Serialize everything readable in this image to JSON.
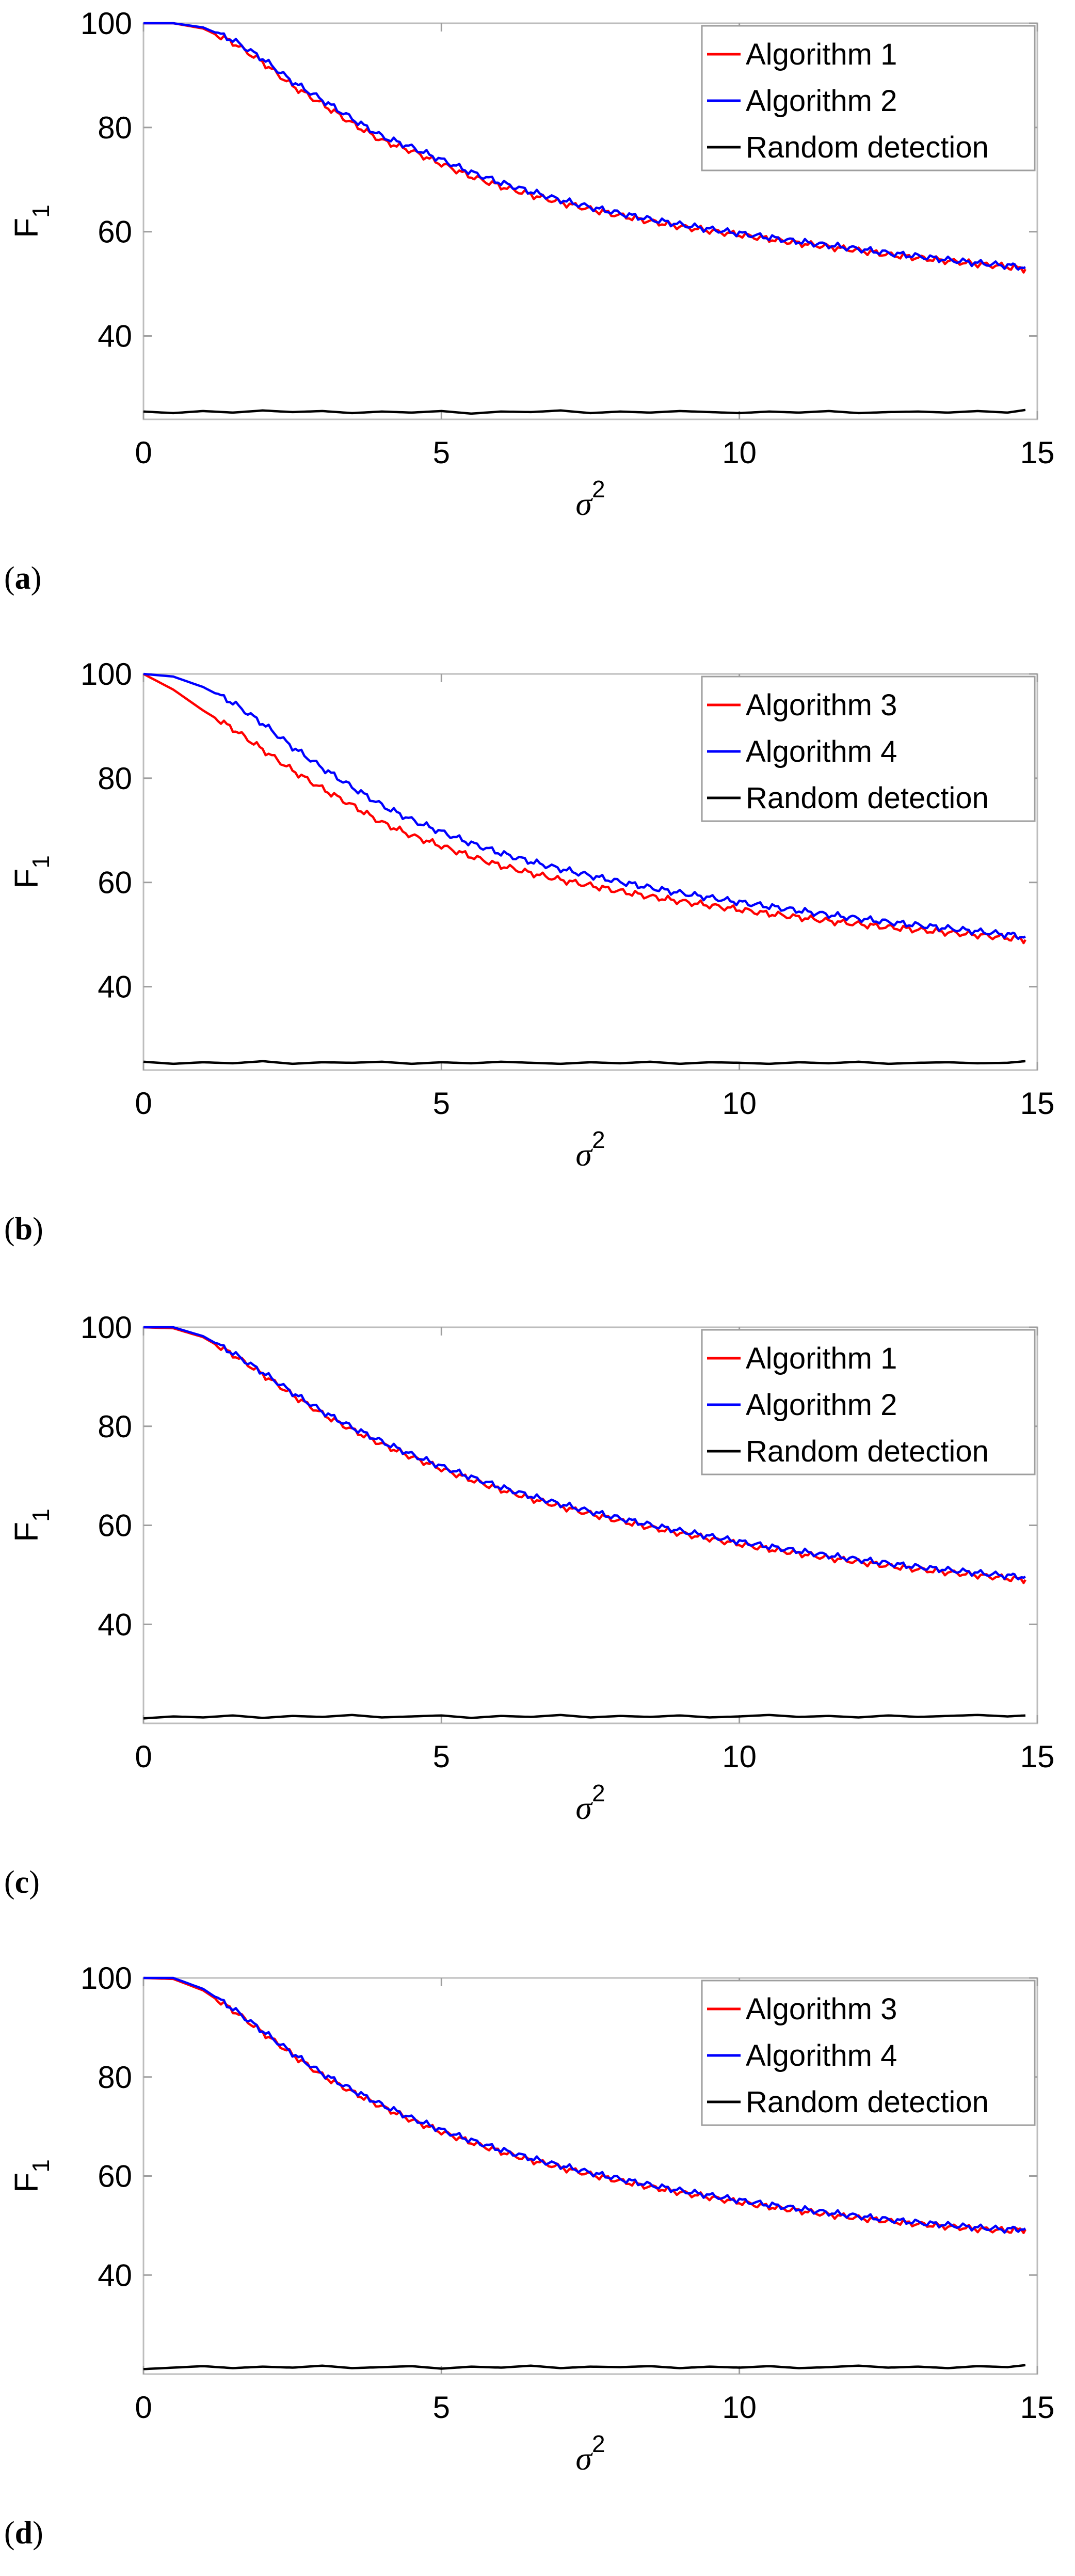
{
  "chart_data": [
    {
      "type": "line",
      "panel_label": "a",
      "xlabel": "σ",
      "xlabel_superscript": "2",
      "ylabel": "F",
      "ylabel_subscript": "1",
      "xlim": [
        0,
        15
      ],
      "ylim": [
        24,
        100
      ],
      "xticks": [
        0,
        5,
        10,
        15
      ],
      "yticks": [
        40,
        60,
        80,
        100
      ],
      "grid": false,
      "legend_position": "top-right",
      "x": [
        0,
        0.5,
        1,
        1.5,
        2,
        2.5,
        3,
        3.5,
        4,
        4.5,
        5,
        5.5,
        6,
        6.5,
        7,
        7.5,
        8,
        8.5,
        9,
        9.5,
        10,
        10.5,
        11,
        11.5,
        12,
        12.5,
        13,
        13.5,
        14,
        14.5,
        14.8
      ],
      "series": [
        {
          "name": "Algorithm 1",
          "color": "#ff0000",
          "values": [
            100,
            100,
            99,
            96.3,
            92.5,
            88,
            84.5,
            80.8,
            77.5,
            75.5,
            73,
            70.6,
            68.7,
            67.1,
            65.6,
            64.3,
            63.1,
            62,
            61,
            60.2,
            59.4,
            58.6,
            57.8,
            57.1,
            56.4,
            55.6,
            55,
            54.4,
            53.8,
            53.3,
            52.8
          ]
        },
        {
          "name": "Algorithm 2",
          "color": "#0000ff",
          "values": [
            100,
            100,
            99.2,
            96.8,
            93.2,
            88.8,
            85.3,
            81.7,
            78.3,
            76.2,
            73.8,
            71.4,
            69.4,
            67.7,
            66.1,
            64.7,
            63.5,
            62.4,
            61.4,
            60.5,
            59.7,
            58.9,
            58.1,
            57.4,
            56.7,
            55.9,
            55.3,
            54.6,
            54,
            53.5,
            53.2
          ]
        },
        {
          "name": "Random detection",
          "color": "#000000",
          "values": [
            25.5,
            25.2,
            25.6,
            25.3,
            25.7,
            25.4,
            25.6,
            25.2,
            25.5,
            25.3,
            25.6,
            25.1,
            25.5,
            25.4,
            25.7,
            25.2,
            25.5,
            25.3,
            25.6,
            25.4,
            25.2,
            25.5,
            25.3,
            25.6,
            25.2,
            25.4,
            25.5,
            25.3,
            25.6,
            25.3,
            25.8
          ]
        }
      ]
    },
    {
      "type": "line",
      "panel_label": "b",
      "xlabel": "σ",
      "xlabel_superscript": "2",
      "ylabel": "F",
      "ylabel_subscript": "1",
      "xlim": [
        0,
        15
      ],
      "ylim": [
        24,
        100
      ],
      "xticks": [
        0,
        5,
        10,
        15
      ],
      "yticks": [
        40,
        60,
        80,
        100
      ],
      "grid": false,
      "legend_position": "top-right",
      "x": [
        0,
        0.5,
        1,
        1.5,
        2,
        2.5,
        3,
        3.5,
        4,
        4.5,
        5,
        5.5,
        6,
        6.5,
        7,
        7.5,
        8,
        8.5,
        9,
        9.5,
        10,
        10.5,
        11,
        11.5,
        12,
        12.5,
        13,
        13.5,
        14,
        14.5,
        14.8
      ],
      "series": [
        {
          "name": "Algorithm 3",
          "color": "#ff0000",
          "values": [
            100,
            97,
            93,
            89.5,
            85.5,
            81.5,
            78,
            74.8,
            71.5,
            69,
            67,
            65,
            63.2,
            61.8,
            60.5,
            59.4,
            58.3,
            57.3,
            56.4,
            55.6,
            54.8,
            54,
            53.3,
            52.6,
            52,
            51.4,
            50.9,
            50.4,
            49.9,
            49.4,
            49
          ]
        },
        {
          "name": "Algorithm 4",
          "color": "#0000ff",
          "values": [
            100,
            99.5,
            97.5,
            94.5,
            90.5,
            86,
            82,
            78.3,
            74.8,
            72,
            69.7,
            67.5,
            65.6,
            64,
            62.6,
            61.3,
            60.1,
            59,
            58,
            57.1,
            56.2,
            55.4,
            54.6,
            53.8,
            53.1,
            52.4,
            51.8,
            51.2,
            50.6,
            50,
            49.6
          ]
        },
        {
          "name": "Random detection",
          "color": "#000000",
          "values": [
            25.6,
            25.2,
            25.5,
            25.3,
            25.7,
            25.2,
            25.5,
            25.4,
            25.6,
            25.2,
            25.5,
            25.3,
            25.6,
            25.4,
            25.2,
            25.5,
            25.3,
            25.6,
            25.2,
            25.5,
            25.4,
            25.2,
            25.5,
            25.3,
            25.6,
            25.2,
            25.4,
            25.5,
            25.3,
            25.4,
            25.7
          ]
        }
      ]
    },
    {
      "type": "line",
      "panel_label": "c",
      "xlabel": "σ",
      "xlabel_superscript": "2",
      "ylabel": "F",
      "ylabel_subscript": "1",
      "xlim": [
        0,
        15
      ],
      "ylim": [
        20,
        100
      ],
      "xticks": [
        0,
        5,
        10,
        15
      ],
      "yticks": [
        40,
        60,
        80,
        100
      ],
      "grid": false,
      "legend_position": "top-right",
      "x": [
        0,
        0.5,
        1,
        1.5,
        2,
        2.5,
        3,
        3.5,
        4,
        4.5,
        5,
        5.5,
        6,
        6.5,
        7,
        7.5,
        8,
        8.5,
        9,
        9.5,
        10,
        10.5,
        11,
        11.5,
        12,
        12.5,
        13,
        13.5,
        14,
        14.5,
        14.8
      ],
      "series": [
        {
          "name": "Algorithm 1",
          "color": "#ff0000",
          "values": [
            100,
            99.8,
            98,
            94.5,
            90.5,
            86.3,
            82.5,
            79.3,
            76.4,
            73.8,
            71.4,
            69.2,
            67.2,
            65.4,
            63.8,
            62.3,
            60.9,
            59.6,
            58.4,
            57.3,
            56.2,
            55.2,
            54.3,
            53.4,
            52.6,
            51.8,
            51.1,
            50.5,
            49.9,
            49.3,
            49
          ]
        },
        {
          "name": "Algorithm 2",
          "color": "#0000ff",
          "values": [
            100,
            100,
            98.2,
            94.8,
            90.9,
            86.8,
            83,
            79.8,
            76.9,
            74.3,
            71.9,
            69.7,
            67.7,
            65.9,
            64.3,
            62.8,
            61.4,
            60.1,
            58.9,
            57.8,
            56.7,
            55.7,
            54.8,
            53.9,
            53.1,
            52.3,
            51.6,
            51,
            50.4,
            49.8,
            49.6
          ]
        },
        {
          "name": "Random detection",
          "color": "#000000",
          "values": [
            21,
            21.4,
            21.2,
            21.6,
            21.1,
            21.5,
            21.3,
            21.7,
            21.2,
            21.4,
            21.6,
            21.1,
            21.5,
            21.3,
            21.7,
            21.2,
            21.5,
            21.3,
            21.6,
            21.2,
            21.4,
            21.7,
            21.3,
            21.5,
            21.2,
            21.6,
            21.3,
            21.5,
            21.7,
            21.4,
            21.6
          ]
        }
      ]
    },
    {
      "type": "line",
      "panel_label": "d",
      "xlabel": "σ",
      "xlabel_superscript": "2",
      "ylabel": "F",
      "ylabel_subscript": "1",
      "xlim": [
        0,
        15
      ],
      "ylim": [
        20,
        100
      ],
      "xticks": [
        0,
        5,
        10,
        15
      ],
      "yticks": [
        40,
        60,
        80,
        100
      ],
      "grid": false,
      "legend_position": "top-right",
      "x": [
        0,
        0.5,
        1,
        1.5,
        2,
        2.5,
        3,
        3.5,
        4,
        4.5,
        5,
        5.5,
        6,
        6.5,
        7,
        7.5,
        8,
        8.5,
        9,
        9.5,
        10,
        10.5,
        11,
        11.5,
        12,
        12.5,
        13,
        13.5,
        14,
        14.5,
        14.8
      ],
      "series": [
        {
          "name": "Algorithm 3",
          "color": "#ff0000",
          "values": [
            100,
            99.8,
            97.5,
            93.5,
            89,
            84.5,
            80.3,
            77,
            74,
            71.3,
            68.9,
            66.8,
            64.9,
            63.2,
            61.7,
            60.3,
            59,
            57.8,
            56.7,
            55.7,
            54.7,
            53.8,
            53,
            52.2,
            51.5,
            50.9,
            50.3,
            49.8,
            49.3,
            49,
            49.2
          ]
        },
        {
          "name": "Algorithm 4",
          "color": "#0000ff",
          "values": [
            100,
            100,
            97.8,
            93.8,
            89.3,
            84.8,
            80.7,
            77.4,
            74.4,
            71.7,
            69.3,
            67.2,
            65.3,
            63.6,
            62.1,
            60.7,
            59.4,
            58.2,
            57.1,
            56.1,
            55.1,
            54.2,
            53.4,
            52.6,
            51.9,
            51.2,
            50.6,
            50.1,
            49.6,
            49.2,
            49.4
          ]
        },
        {
          "name": "Random detection",
          "color": "#000000",
          "values": [
            21,
            21.3,
            21.6,
            21.2,
            21.5,
            21.3,
            21.7,
            21.2,
            21.4,
            21.6,
            21.1,
            21.5,
            21.3,
            21.7,
            21.2,
            21.5,
            21.4,
            21.6,
            21.2,
            21.5,
            21.3,
            21.6,
            21.2,
            21.4,
            21.7,
            21.3,
            21.5,
            21.2,
            21.6,
            21.4,
            21.8
          ]
        }
      ]
    }
  ]
}
